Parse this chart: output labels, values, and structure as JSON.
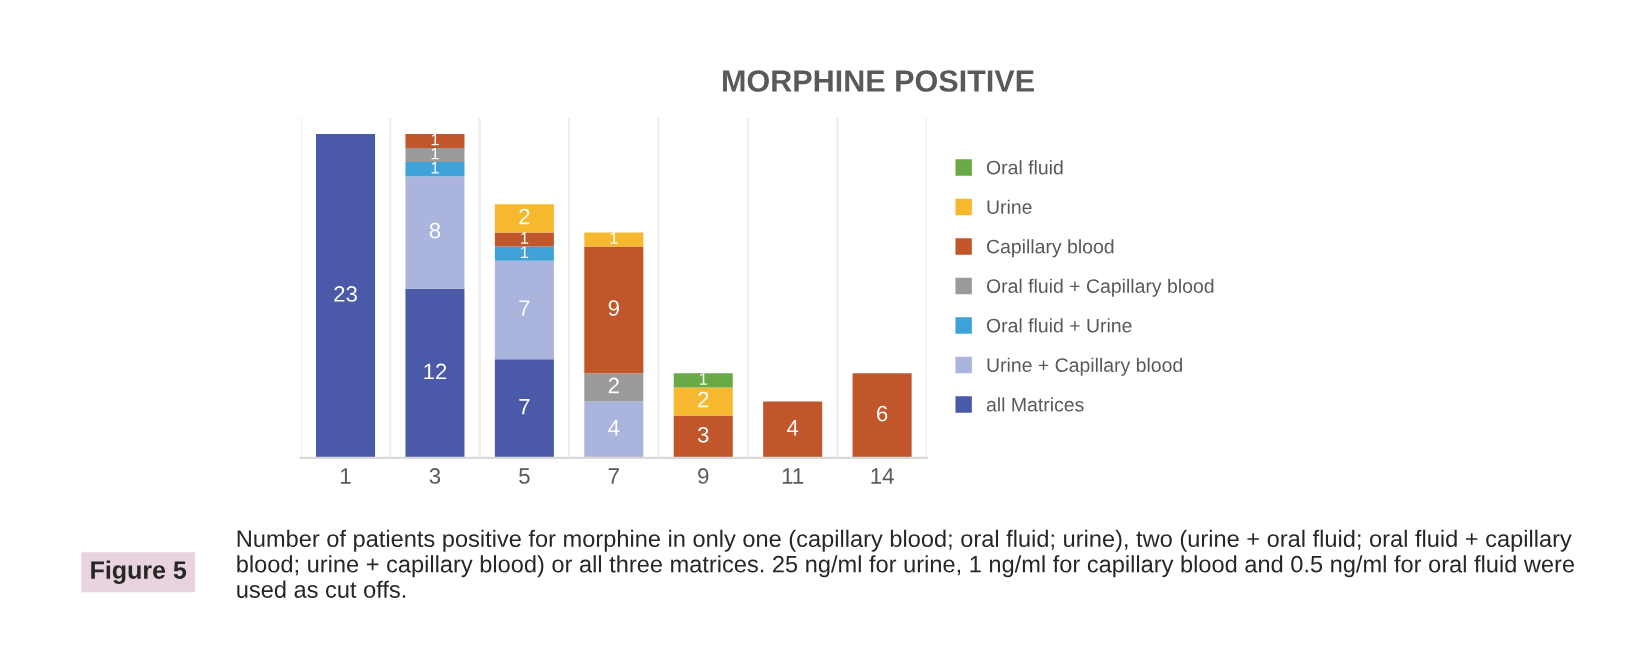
{
  "chart_data": {
    "type": "bar",
    "stacked": true,
    "title": "MORPHINE POSITIVE",
    "categories": [
      "1",
      "3",
      "5",
      "7",
      "9",
      "11",
      "14"
    ],
    "series": [
      {
        "name": "all Matrices",
        "color": "#4a5aa8",
        "values": [
          23,
          12,
          7,
          null,
          null,
          null,
          null
        ]
      },
      {
        "name": "Urine + Capillary blood",
        "color": "#aab4dc",
        "values": [
          null,
          8,
          7,
          4,
          null,
          null,
          null
        ]
      },
      {
        "name": "Oral fluid + Urine",
        "color": "#3fa2d8",
        "values": [
          null,
          1,
          1,
          null,
          null,
          null,
          null
        ]
      },
      {
        "name": "Oral fluid + Capillary blood",
        "color": "#9a9a9a",
        "values": [
          null,
          1,
          null,
          2,
          null,
          null,
          null
        ]
      },
      {
        "name": "Capillary blood",
        "color": "#c0562a",
        "values": [
          null,
          1,
          1,
          9,
          3,
          4,
          6
        ]
      },
      {
        "name": "Urine",
        "color": "#f5b82e",
        "values": [
          null,
          null,
          2,
          1,
          2,
          null,
          null
        ]
      },
      {
        "name": "Oral fluid",
        "color": "#6aaa46",
        "values": [
          null,
          null,
          null,
          null,
          1,
          null,
          null
        ]
      }
    ],
    "data_labels": true,
    "legend": "right",
    "annotations": [
      "Figure 5",
      "Number of patients positive for morphine in only one (capillary blood; oral fluid; urine), two (urine + oral fluid; oral fluid + capillary blood; urine + capillary blood) or all three matrices. 25 ng/ml for urine, 1 ng/ml for capillary blood and 0.5 ng/ml for oral fluid were used as cut offs."
    ]
  }
}
